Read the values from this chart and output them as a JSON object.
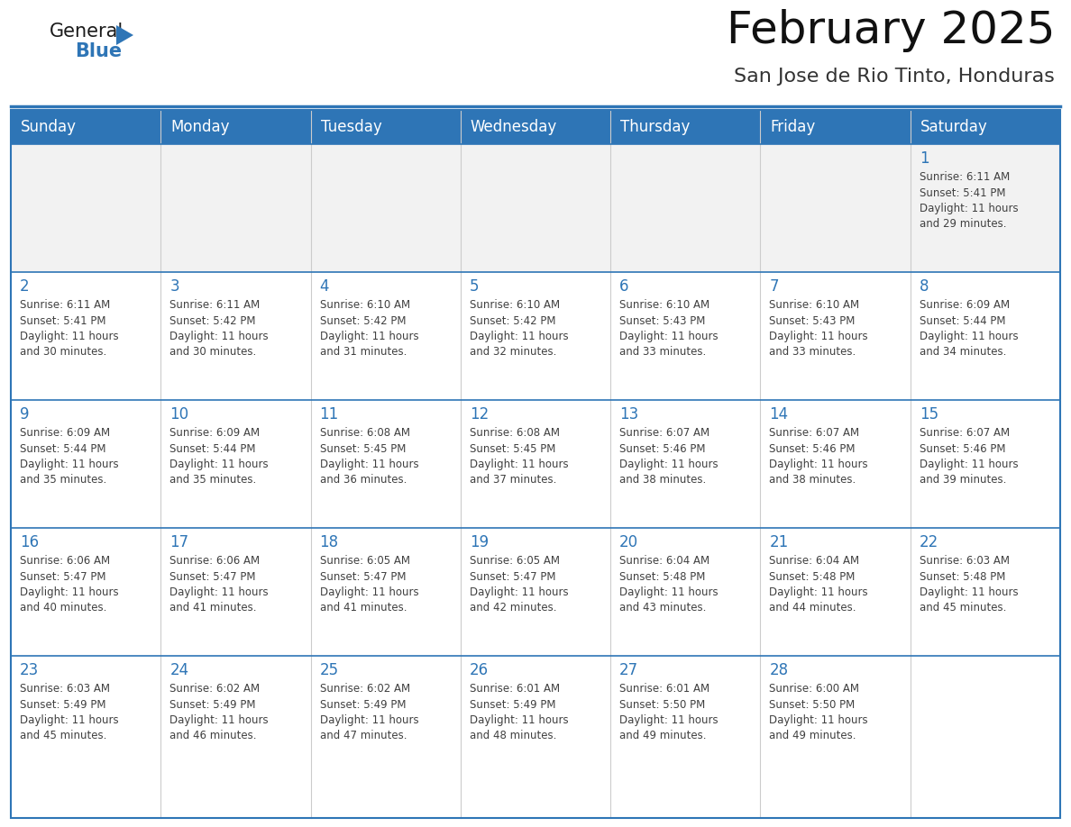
{
  "title": "February 2025",
  "subtitle": "San Jose de Rio Tinto, Honduras",
  "header_color": "#2E75B6",
  "header_text_color": "#FFFFFF",
  "cell_bg_white": "#FFFFFF",
  "cell_bg_first_row": "#F2F2F2",
  "day_number_color": "#2E75B6",
  "text_color": "#404040",
  "row_divider_color": "#2E75B6",
  "col_divider_color": "#CCCCCC",
  "days_of_week": [
    "Sunday",
    "Monday",
    "Tuesday",
    "Wednesday",
    "Thursday",
    "Friday",
    "Saturday"
  ],
  "weeks": [
    [
      {
        "day": 0,
        "info": ""
      },
      {
        "day": 0,
        "info": ""
      },
      {
        "day": 0,
        "info": ""
      },
      {
        "day": 0,
        "info": ""
      },
      {
        "day": 0,
        "info": ""
      },
      {
        "day": 0,
        "info": ""
      },
      {
        "day": 1,
        "info": "Sunrise: 6:11 AM\nSunset: 5:41 PM\nDaylight: 11 hours\nand 29 minutes."
      }
    ],
    [
      {
        "day": 2,
        "info": "Sunrise: 6:11 AM\nSunset: 5:41 PM\nDaylight: 11 hours\nand 30 minutes."
      },
      {
        "day": 3,
        "info": "Sunrise: 6:11 AM\nSunset: 5:42 PM\nDaylight: 11 hours\nand 30 minutes."
      },
      {
        "day": 4,
        "info": "Sunrise: 6:10 AM\nSunset: 5:42 PM\nDaylight: 11 hours\nand 31 minutes."
      },
      {
        "day": 5,
        "info": "Sunrise: 6:10 AM\nSunset: 5:42 PM\nDaylight: 11 hours\nand 32 minutes."
      },
      {
        "day": 6,
        "info": "Sunrise: 6:10 AM\nSunset: 5:43 PM\nDaylight: 11 hours\nand 33 minutes."
      },
      {
        "day": 7,
        "info": "Sunrise: 6:10 AM\nSunset: 5:43 PM\nDaylight: 11 hours\nand 33 minutes."
      },
      {
        "day": 8,
        "info": "Sunrise: 6:09 AM\nSunset: 5:44 PM\nDaylight: 11 hours\nand 34 minutes."
      }
    ],
    [
      {
        "day": 9,
        "info": "Sunrise: 6:09 AM\nSunset: 5:44 PM\nDaylight: 11 hours\nand 35 minutes."
      },
      {
        "day": 10,
        "info": "Sunrise: 6:09 AM\nSunset: 5:44 PM\nDaylight: 11 hours\nand 35 minutes."
      },
      {
        "day": 11,
        "info": "Sunrise: 6:08 AM\nSunset: 5:45 PM\nDaylight: 11 hours\nand 36 minutes."
      },
      {
        "day": 12,
        "info": "Sunrise: 6:08 AM\nSunset: 5:45 PM\nDaylight: 11 hours\nand 37 minutes."
      },
      {
        "day": 13,
        "info": "Sunrise: 6:07 AM\nSunset: 5:46 PM\nDaylight: 11 hours\nand 38 minutes."
      },
      {
        "day": 14,
        "info": "Sunrise: 6:07 AM\nSunset: 5:46 PM\nDaylight: 11 hours\nand 38 minutes."
      },
      {
        "day": 15,
        "info": "Sunrise: 6:07 AM\nSunset: 5:46 PM\nDaylight: 11 hours\nand 39 minutes."
      }
    ],
    [
      {
        "day": 16,
        "info": "Sunrise: 6:06 AM\nSunset: 5:47 PM\nDaylight: 11 hours\nand 40 minutes."
      },
      {
        "day": 17,
        "info": "Sunrise: 6:06 AM\nSunset: 5:47 PM\nDaylight: 11 hours\nand 41 minutes."
      },
      {
        "day": 18,
        "info": "Sunrise: 6:05 AM\nSunset: 5:47 PM\nDaylight: 11 hours\nand 41 minutes."
      },
      {
        "day": 19,
        "info": "Sunrise: 6:05 AM\nSunset: 5:47 PM\nDaylight: 11 hours\nand 42 minutes."
      },
      {
        "day": 20,
        "info": "Sunrise: 6:04 AM\nSunset: 5:48 PM\nDaylight: 11 hours\nand 43 minutes."
      },
      {
        "day": 21,
        "info": "Sunrise: 6:04 AM\nSunset: 5:48 PM\nDaylight: 11 hours\nand 44 minutes."
      },
      {
        "day": 22,
        "info": "Sunrise: 6:03 AM\nSunset: 5:48 PM\nDaylight: 11 hours\nand 45 minutes."
      }
    ],
    [
      {
        "day": 23,
        "info": "Sunrise: 6:03 AM\nSunset: 5:49 PM\nDaylight: 11 hours\nand 45 minutes."
      },
      {
        "day": 24,
        "info": "Sunrise: 6:02 AM\nSunset: 5:49 PM\nDaylight: 11 hours\nand 46 minutes."
      },
      {
        "day": 25,
        "info": "Sunrise: 6:02 AM\nSunset: 5:49 PM\nDaylight: 11 hours\nand 47 minutes."
      },
      {
        "day": 26,
        "info": "Sunrise: 6:01 AM\nSunset: 5:49 PM\nDaylight: 11 hours\nand 48 minutes."
      },
      {
        "day": 27,
        "info": "Sunrise: 6:01 AM\nSunset: 5:50 PM\nDaylight: 11 hours\nand 49 minutes."
      },
      {
        "day": 28,
        "info": "Sunrise: 6:00 AM\nSunset: 5:50 PM\nDaylight: 11 hours\nand 49 minutes."
      },
      {
        "day": 0,
        "info": ""
      }
    ]
  ],
  "logo_color_general": "#1A1A1A",
  "logo_color_blue": "#2E75B6",
  "logo_triangle_color": "#2E75B6",
  "title_fontsize": 36,
  "subtitle_fontsize": 16,
  "header_fontsize": 12,
  "day_num_fontsize": 12,
  "info_fontsize": 8.5
}
